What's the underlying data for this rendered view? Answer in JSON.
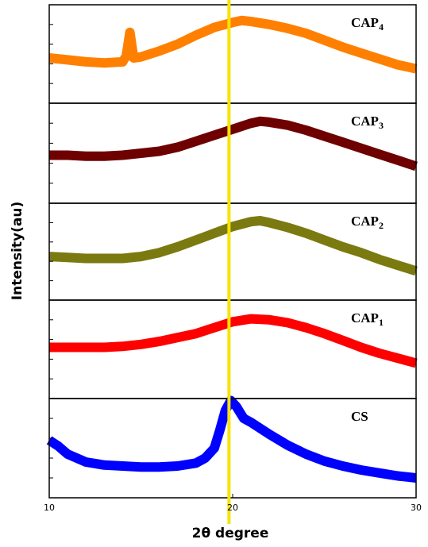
{
  "chart_data": {
    "type": "line",
    "xlabel": "2θ degree",
    "ylabel": "Intensity(au)",
    "xlim": [
      10,
      30
    ],
    "xticks": [
      "10",
      "20",
      "30"
    ],
    "reference_line": {
      "x": 19.8,
      "color": "#f5e400"
    },
    "series": [
      {
        "name": "CAP",
        "name_sub": "4",
        "color": "#ff8000",
        "x": [
          10,
          11,
          12,
          13,
          14,
          14.2,
          14.4,
          14.6,
          15,
          16,
          17,
          18,
          19,
          20,
          20.5,
          21,
          22,
          23,
          24,
          25,
          26,
          27,
          28,
          29,
          30
        ],
        "y": [
          0.46,
          0.44,
          0.42,
          0.41,
          0.42,
          0.48,
          0.72,
          0.46,
          0.47,
          0.53,
          0.6,
          0.69,
          0.77,
          0.82,
          0.84,
          0.83,
          0.8,
          0.76,
          0.71,
          0.64,
          0.57,
          0.51,
          0.45,
          0.39,
          0.35
        ]
      },
      {
        "name": "CAP",
        "name_sub": "3",
        "color": "#6e0000",
        "x": [
          10,
          11,
          12,
          13,
          14,
          15,
          16,
          17,
          18,
          19,
          20,
          21,
          21.5,
          22,
          23,
          24,
          25,
          26,
          27,
          28,
          29,
          30
        ],
        "y": [
          0.48,
          0.48,
          0.47,
          0.47,
          0.48,
          0.5,
          0.52,
          0.56,
          0.62,
          0.68,
          0.74,
          0.8,
          0.82,
          0.81,
          0.78,
          0.73,
          0.67,
          0.61,
          0.55,
          0.49,
          0.43,
          0.37
        ]
      },
      {
        "name": "CAP",
        "name_sub": "2",
        "color": "#7a7a10",
        "x": [
          10,
          11,
          12,
          13,
          14,
          15,
          16,
          17,
          18,
          19,
          20,
          21,
          21.5,
          22,
          23,
          24,
          25,
          26,
          27,
          28,
          29,
          30
        ],
        "y": [
          0.45,
          0.44,
          0.43,
          0.43,
          0.43,
          0.45,
          0.49,
          0.55,
          0.62,
          0.69,
          0.76,
          0.81,
          0.82,
          0.8,
          0.75,
          0.69,
          0.62,
          0.55,
          0.49,
          0.42,
          0.36,
          0.3
        ]
      },
      {
        "name": "CAP",
        "name_sub": "1",
        "color": "#ff0000",
        "x": [
          10,
          11,
          12,
          13,
          14,
          15,
          16,
          17,
          18,
          19,
          20,
          21,
          22,
          23,
          24,
          25,
          26,
          27,
          28,
          29,
          30
        ],
        "y": [
          0.52,
          0.52,
          0.52,
          0.52,
          0.53,
          0.55,
          0.58,
          0.62,
          0.66,
          0.72,
          0.78,
          0.81,
          0.8,
          0.77,
          0.72,
          0.66,
          0.59,
          0.52,
          0.46,
          0.41,
          0.36
        ]
      },
      {
        "name": "CS",
        "name_sub": "",
        "color": "#0000ff",
        "x": [
          10,
          10.5,
          11,
          12,
          13,
          14,
          15,
          16,
          17,
          18,
          18.5,
          19,
          19.3,
          19.6,
          19.9,
          20.2,
          20.6,
          21,
          22,
          23,
          24,
          25,
          26,
          27,
          28,
          29,
          30
        ],
        "y": [
          0.58,
          0.52,
          0.44,
          0.36,
          0.33,
          0.32,
          0.31,
          0.31,
          0.32,
          0.35,
          0.4,
          0.5,
          0.68,
          0.88,
          0.98,
          0.92,
          0.8,
          0.76,
          0.64,
          0.53,
          0.44,
          0.37,
          0.32,
          0.28,
          0.25,
          0.22,
          0.2
        ]
      }
    ]
  }
}
